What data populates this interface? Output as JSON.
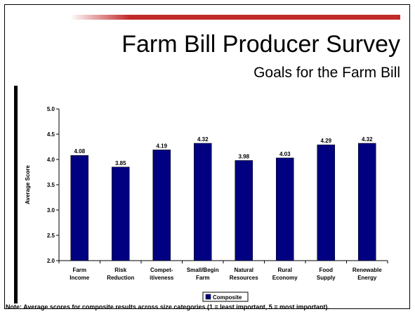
{
  "slide": {
    "title": "Farm Bill Producer Survey",
    "subtitle": "Goals for the Farm Bill",
    "note": "Note: Average scores for composite results across size categories (1 = least important, 5 = most important)."
  },
  "colors": {
    "bar": "#000080",
    "accent": "#c22a2a"
  },
  "chart_data": {
    "type": "bar",
    "categories": [
      [
        "Farm",
        "Income"
      ],
      [
        "Risk",
        "Reduction"
      ],
      [
        "Compet-",
        "itiveness"
      ],
      [
        "Small/Begin",
        "Farm"
      ],
      [
        "Natural",
        "Resources"
      ],
      [
        "Rural",
        "Economy"
      ],
      [
        "Food",
        "Supply"
      ],
      [
        "Renewable",
        "Energy"
      ]
    ],
    "series": [
      {
        "name": "Composite",
        "values": [
          4.08,
          3.85,
          4.19,
          4.32,
          3.98,
          4.03,
          4.29,
          4.32
        ]
      }
    ],
    "value_labels": [
      "4.08",
      "3.85",
      "4.19",
      "4.32",
      "3.98",
      "4.03",
      "4.29",
      "4.32"
    ],
    "ylabel": "Average Score",
    "ylim": [
      2.0,
      5.0
    ],
    "yticks": [
      "2.0",
      "2.5",
      "3.0",
      "3.5",
      "4.0",
      "4.5",
      "5.0"
    ],
    "grid": false,
    "legend": "bottom-center"
  }
}
